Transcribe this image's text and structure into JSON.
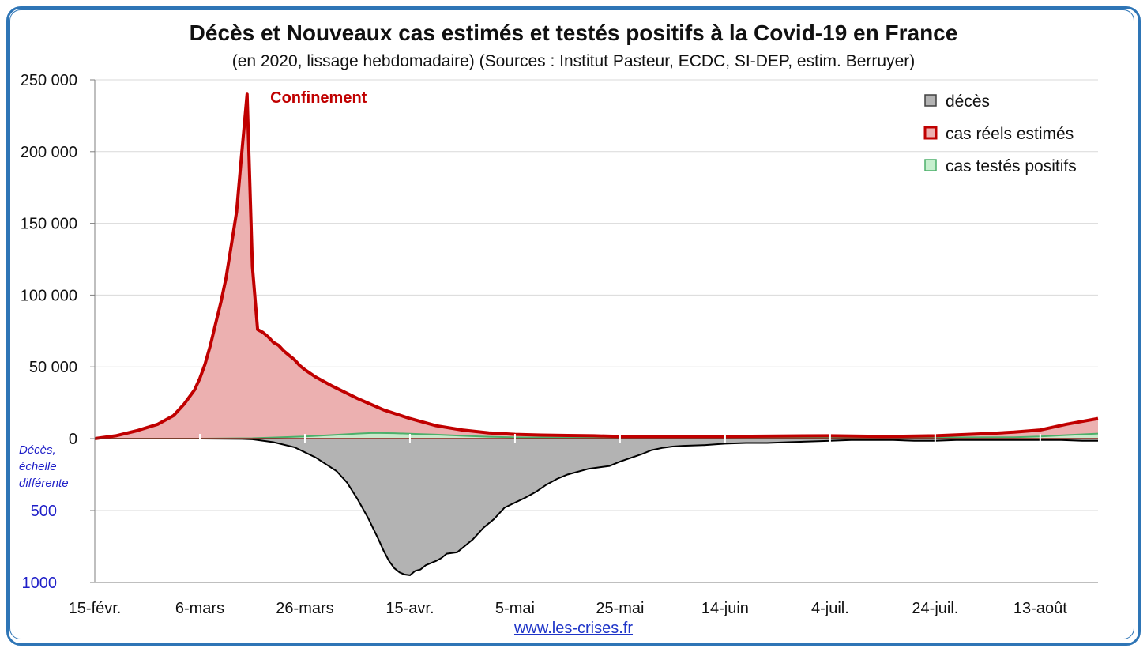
{
  "header": {
    "title": "Décès et Nouveaux cas estimés et testés positifs à la Covid-19 en France",
    "subtitle": "(en 2020, lissage hebdomadaire) (Sources : Institut Pasteur, ECDC, SI-DEP, estim. Berruyer)"
  },
  "footer": {
    "link_text": "www.les-crises.fr"
  },
  "colors": {
    "frame": "#2e75b6",
    "deces_fill": "#b3b3b3",
    "deces_line": "#000000",
    "cas_reels_fill": "#ecb0b0",
    "cas_reels_line": "#c00000",
    "cas_testes_fill": "#c6efce",
    "cas_testes_line": "#4caf6a",
    "secondary_axis": "#1f1fc8"
  },
  "chart_data": {
    "type": "area",
    "x_tick_labels": [
      "15-févr.",
      "6-mars",
      "26-mars",
      "15-avr.",
      "5-mai",
      "25-mai",
      "14-juin",
      "4-juil.",
      "24-juil.",
      "13-août"
    ],
    "x_tick_days": [
      0,
      20,
      40,
      60,
      80,
      100,
      120,
      140,
      160,
      180
    ],
    "x_range_days": [
      0,
      191
    ],
    "y_primary": {
      "ylim": [
        0,
        250000
      ],
      "ticks": [
        0,
        50000,
        100000,
        150000,
        200000,
        250000
      ],
      "tick_labels": [
        "0",
        "50 000",
        "100 000",
        "150 000",
        "200 000",
        "250 000"
      ]
    },
    "y_secondary": {
      "ylim": [
        0,
        1000
      ],
      "inverted": true,
      "ticks": [
        500,
        1000
      ],
      "tick_labels": [
        "500",
        "1000"
      ],
      "label": "Décès, échelle différente",
      "label_lines": [
        "Décès,",
        "échelle",
        "différente"
      ]
    },
    "grid": true,
    "legend": {
      "placement": "top-right",
      "entries": [
        "décès",
        "cas réels estimés",
        "cas testés positifs"
      ]
    },
    "annotations": [
      {
        "text": "Confinement",
        "x_day": 31,
        "y": 235000
      }
    ],
    "series": [
      {
        "name": "décès",
        "axis": "secondary",
        "x": [
          0,
          20,
          28,
          30,
          34,
          38,
          42,
          46,
          48,
          50,
          52,
          54,
          55,
          56,
          57,
          58,
          59,
          60,
          61,
          62,
          63,
          65,
          66,
          67,
          69,
          72,
          74,
          76,
          78,
          82,
          84,
          86,
          88,
          90,
          94,
          96,
          98,
          100,
          104,
          106,
          108,
          110,
          112,
          116,
          120,
          124,
          128,
          132,
          136,
          140,
          144,
          148,
          152,
          156,
          160,
          164,
          168,
          172,
          176,
          180,
          184,
          188,
          191
        ],
        "values": [
          0,
          0,
          2,
          5,
          25,
          60,
          130,
          225,
          305,
          420,
          550,
          700,
          780,
          850,
          900,
          930,
          945,
          950,
          920,
          910,
          880,
          850,
          830,
          800,
          790,
          700,
          620,
          560,
          480,
          410,
          370,
          320,
          280,
          250,
          210,
          200,
          190,
          160,
          110,
          80,
          65,
          55,
          50,
          45,
          35,
          30,
          30,
          25,
          20,
          15,
          10,
          10,
          10,
          15,
          15,
          10,
          10,
          10,
          10,
          10,
          10,
          15,
          15
        ]
      },
      {
        "name": "cas réels estimés",
        "axis": "primary",
        "x": [
          0,
          4,
          8,
          12,
          15,
          17,
          19,
          20,
          21,
          22,
          23,
          24,
          25,
          26,
          27,
          28,
          29,
          30,
          31,
          32,
          33,
          34,
          35,
          36,
          37,
          38,
          39,
          40,
          42,
          45,
          50,
          55,
          60,
          65,
          70,
          75,
          80,
          85,
          90,
          95,
          100,
          110,
          120,
          130,
          140,
          150,
          160,
          170,
          175,
          180,
          185,
          188,
          191
        ],
        "values": [
          0,
          2000,
          5500,
          10000,
          16000,
          24000,
          34000,
          42000,
          52000,
          65000,
          80000,
          95000,
          112000,
          135000,
          158000,
          200000,
          240000,
          120000,
          76000,
          74000,
          71000,
          67000,
          65000,
          61000,
          58000,
          55000,
          51000,
          48000,
          43000,
          37000,
          28000,
          20000,
          14000,
          9000,
          6000,
          4000,
          3000,
          2500,
          2200,
          2000,
          1500,
          1500,
          1500,
          1800,
          2000,
          1500,
          2000,
          3500,
          4500,
          6000,
          10000,
          12000,
          14000
        ]
      },
      {
        "name": "cas testés positifs",
        "axis": "primary",
        "x": [
          0,
          20,
          30,
          40,
          45,
          50,
          53,
          57,
          61,
          65,
          70,
          75,
          80,
          90,
          100,
          120,
          140,
          160,
          175,
          180,
          185,
          191
        ],
        "values": [
          0,
          0,
          300,
          1500,
          2500,
          3500,
          4000,
          3800,
          3300,
          2800,
          2000,
          1300,
          900,
          700,
          500,
          400,
          600,
          800,
          1000,
          1500,
          2500,
          3500
        ]
      }
    ]
  }
}
